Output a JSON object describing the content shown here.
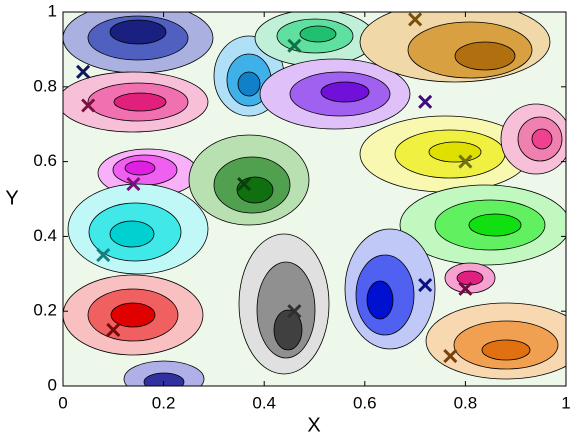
{
  "chart_data": {
    "type": "scatter",
    "xlabel": "X",
    "ylabel": "Y",
    "x": [
      0.04,
      0.05,
      0.14,
      0.36,
      0.46,
      0.7,
      0.72,
      0.8,
      0.08,
      0.1,
      0.46,
      0.72,
      0.8,
      0.77
    ],
    "values": [
      0.84,
      0.75,
      0.54,
      0.54,
      0.91,
      0.98,
      0.76,
      0.6,
      0.35,
      0.15,
      0.2,
      0.27,
      0.26,
      0.08
    ],
    "colors": [
      "#10185a",
      "#7a1040",
      "#7a107a",
      "#0a400a",
      "#107048",
      "#7a5008",
      "#400a80",
      "#707010",
      "#108080",
      "#7a0a0a",
      "#303030",
      "#0a1080",
      "#700a40",
      "#7a4008"
    ],
    "xlim": [
      0,
      1
    ],
    "ylim": [
      0,
      1
    ],
    "xticks": [
      0,
      0.2,
      0.4,
      0.6,
      0.8,
      1
    ],
    "yticks": [
      0,
      0.2,
      0.4,
      0.6,
      0.8,
      1
    ]
  }
}
